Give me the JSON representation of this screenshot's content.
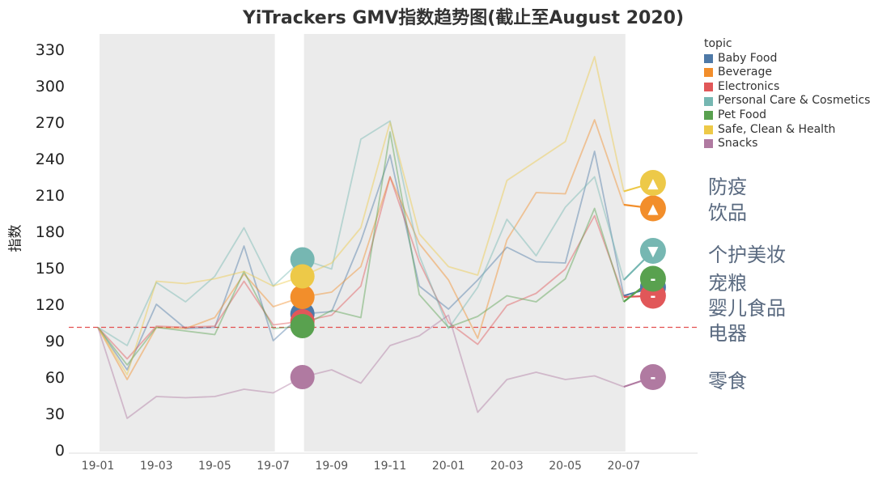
{
  "chart_data": {
    "type": "line",
    "title": "YiTrackers GMV指数趋势图(截止至August 2020)",
    "ylabel": "指数",
    "xlabel": "",
    "ylim": [
      0,
      340
    ],
    "yticks": [
      0,
      30,
      60,
      90,
      120,
      150,
      180,
      210,
      240,
      270,
      300,
      330
    ],
    "x": [
      "19-01",
      "19-02",
      "19-03",
      "19-04",
      "19-05",
      "19-06",
      "19-07",
      "19-08",
      "19-09",
      "19-10",
      "19-11",
      "19-12",
      "20-01",
      "20-02",
      "20-03",
      "20-04",
      "20-05",
      "20-06",
      "20-07",
      "20-08"
    ],
    "xtick_labels": [
      "19-01",
      "19-03",
      "19-05",
      "19-07",
      "19-09",
      "19-11",
      "20-01",
      "20-03",
      "20-05",
      "20-07"
    ],
    "reference_line": 101,
    "shaded_ranges": [
      [
        "19-01",
        "19-07"
      ],
      [
        "19-08",
        "20-07"
      ]
    ],
    "legend_title": "topic",
    "legend_position": "top-right",
    "series": [
      {
        "name": "Baby Food",
        "color": "#4e79a7",
        "values": [
          101,
          66,
          120,
          100,
          101,
          168,
          90,
          112,
          114,
          172,
          243,
          135,
          116,
          140,
          167,
          155,
          154,
          246,
          127,
          134
        ],
        "marker_index": 7,
        "end_symbol": "-",
        "end_label": "婴儿食品"
      },
      {
        "name": "Beverage",
        "color": "#f28e2b",
        "values": [
          101,
          58,
          101,
          100,
          109,
          145,
          118,
          126,
          130,
          151,
          225,
          170,
          140,
          92,
          173,
          212,
          211,
          272,
          202,
          199
        ],
        "marker_index": 7,
        "end_symbol": "▲",
        "end_label": "饮品"
      },
      {
        "name": "Electronics",
        "color": "#e15759",
        "values": [
          101,
          75,
          102,
          101,
          102,
          139,
          103,
          106,
          111,
          135,
          225,
          155,
          105,
          87,
          119,
          129,
          149,
          193,
          126,
          127
        ],
        "marker_index": 7,
        "end_symbol": "-",
        "end_label": "电器"
      },
      {
        "name": "Personal Care & Cosmetics",
        "color": "#76b7b2",
        "values": [
          101,
          86,
          138,
          122,
          143,
          183,
          135,
          157,
          149,
          256,
          271,
          160,
          100,
          134,
          190,
          160,
          200,
          225,
          140,
          164
        ],
        "marker_index": 7,
        "end_symbol": "▼",
        "end_label": "个护美妆"
      },
      {
        "name": "Pet Food",
        "color": "#59a14f",
        "values": [
          101,
          70,
          101,
          98,
          95,
          147,
          100,
          102,
          115,
          109,
          262,
          128,
          101,
          110,
          127,
          122,
          141,
          199,
          122,
          141
        ],
        "marker_index": 7,
        "end_symbol": "-",
        "end_label": "宠粮"
      },
      {
        "name": "Safe, Clean & Health",
        "color": "#edc948",
        "values": [
          101,
          62,
          139,
          137,
          141,
          147,
          135,
          143,
          154,
          183,
          270,
          178,
          151,
          144,
          222,
          238,
          254,
          324,
          213,
          220
        ],
        "marker_index": 7,
        "end_symbol": "▲",
        "end_label": "防疫"
      },
      {
        "name": "Snacks",
        "color": "#b07aa1",
        "values": [
          101,
          26,
          44,
          43,
          44,
          50,
          47,
          60,
          66,
          55,
          86,
          94,
          111,
          31,
          58,
          64,
          58,
          61,
          52,
          60
        ],
        "marker_index": 7,
        "end_symbol": "-",
        "end_label": "零食"
      }
    ]
  }
}
